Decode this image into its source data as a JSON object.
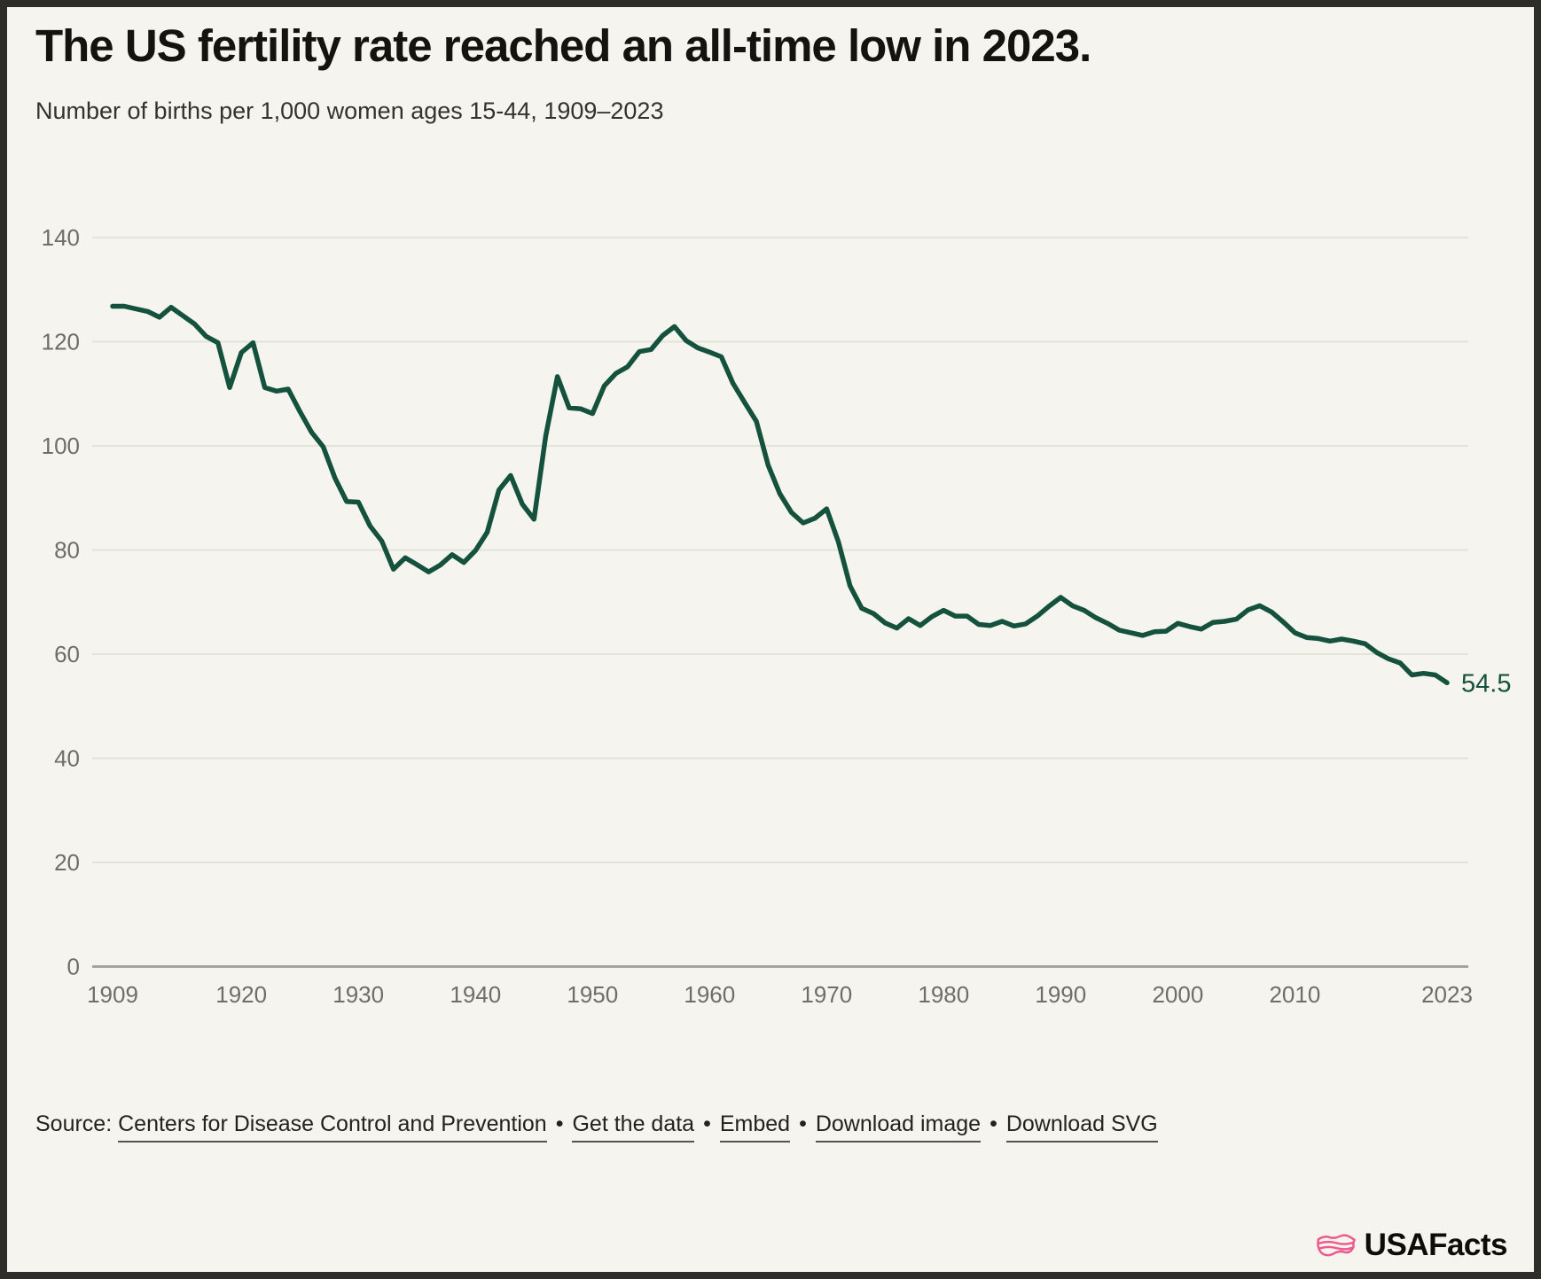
{
  "header": {
    "title": "The US fertility rate reached an all-time low in 2023.",
    "subtitle": "Number of births per 1,000 women ages 15-44, 1909–2023"
  },
  "chart_data": {
    "type": "line",
    "title": "The US fertility rate reached an all-time low in 2023.",
    "subtitle": "Number of births per 1,000 women ages 15-44, 1909–2023",
    "series_name": "Births per 1,000 women ages 15-44",
    "x": [
      1909,
      1910,
      1911,
      1912,
      1913,
      1914,
      1915,
      1916,
      1917,
      1918,
      1919,
      1920,
      1921,
      1922,
      1923,
      1924,
      1925,
      1926,
      1927,
      1928,
      1929,
      1930,
      1931,
      1932,
      1933,
      1934,
      1935,
      1936,
      1937,
      1938,
      1939,
      1940,
      1941,
      1942,
      1943,
      1944,
      1945,
      1946,
      1947,
      1948,
      1949,
      1950,
      1951,
      1952,
      1953,
      1954,
      1955,
      1956,
      1957,
      1958,
      1959,
      1960,
      1961,
      1962,
      1963,
      1964,
      1965,
      1966,
      1967,
      1968,
      1969,
      1970,
      1971,
      1972,
      1973,
      1974,
      1975,
      1976,
      1977,
      1978,
      1979,
      1980,
      1981,
      1982,
      1983,
      1984,
      1985,
      1986,
      1987,
      1988,
      1989,
      1990,
      1991,
      1992,
      1993,
      1994,
      1995,
      1996,
      1997,
      1998,
      1999,
      2000,
      2001,
      2002,
      2003,
      2004,
      2005,
      2006,
      2007,
      2008,
      2009,
      2010,
      2011,
      2012,
      2013,
      2014,
      2015,
      2016,
      2017,
      2018,
      2019,
      2020,
      2021,
      2022,
      2023
    ],
    "values": [
      126.8,
      126.8,
      126.3,
      125.8,
      124.7,
      126.6,
      125.0,
      123.4,
      121.0,
      119.8,
      111.2,
      117.9,
      119.8,
      111.2,
      110.5,
      110.9,
      106.6,
      102.6,
      99.8,
      93.8,
      89.3,
      89.2,
      84.6,
      81.7,
      76.3,
      78.5,
      77.2,
      75.8,
      77.1,
      79.1,
      77.6,
      79.9,
      83.4,
      91.5,
      94.3,
      88.8,
      85.9,
      101.9,
      113.3,
      107.3,
      107.1,
      106.2,
      111.5,
      113.9,
      115.2,
      118.1,
      118.5,
      121.2,
      122.9,
      120.2,
      118.8,
      118.0,
      117.1,
      112.0,
      108.3,
      104.7,
      96.3,
      90.8,
      87.2,
      85.2,
      86.1,
      87.9,
      81.6,
      73.1,
      68.8,
      67.8,
      66.0,
      65.0,
      66.8,
      65.5,
      67.2,
      68.4,
      67.3,
      67.3,
      65.7,
      65.5,
      66.3,
      65.4,
      65.8,
      67.3,
      69.2,
      70.9,
      69.3,
      68.4,
      67.0,
      65.9,
      64.6,
      64.1,
      63.6,
      64.3,
      64.4,
      65.9,
      65.3,
      64.8,
      66.1,
      66.3,
      66.7,
      68.5,
      69.3,
      68.1,
      66.2,
      64.1,
      63.2,
      63.0,
      62.5,
      62.9,
      62.5,
      62.0,
      60.3,
      59.1,
      58.3,
      56.0,
      56.3,
      56.0,
      54.5
    ],
    "ylim": [
      0,
      140
    ],
    "xlim": [
      1909,
      2023
    ],
    "yticks": [
      0,
      20,
      40,
      60,
      80,
      100,
      120,
      140
    ],
    "xticks": [
      1909,
      1920,
      1930,
      1940,
      1950,
      1960,
      1970,
      1980,
      1990,
      2000,
      2010,
      2023
    ],
    "grid": true,
    "legend": "none",
    "end_label": "54.5",
    "latest_value": 54.5,
    "line_color": "#15523e",
    "background_color": "#f5f4ee"
  },
  "footer": {
    "source_prefix": "Source:",
    "source_link": "Centers for Disease Control and Prevention",
    "separator": "•",
    "links": [
      "Get the data",
      "Embed",
      "Download image",
      "Download SVG"
    ]
  },
  "branding": {
    "logo_text": "USAFacts",
    "logo_icon": "usa-map-icon",
    "logo_icon_color": "#ee5a8f"
  }
}
